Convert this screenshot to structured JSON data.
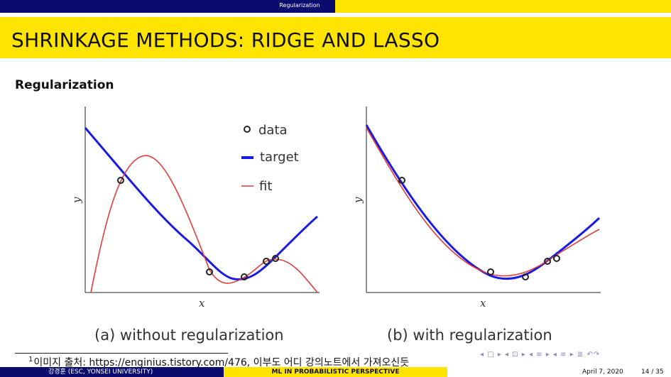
{
  "header": {
    "section": "Regularization"
  },
  "slide": {
    "title": "SHRINKAGE METHODS: RIDGE AND LASSO",
    "subheading": "Regularization"
  },
  "figure": {
    "legend": {
      "data": "data",
      "target": "target",
      "fit": "fit"
    },
    "panel_a": {
      "xlabel": "x",
      "ylabel": "y",
      "caption": "(a) without regularization"
    },
    "panel_b": {
      "xlabel": "x",
      "ylabel": "y",
      "caption": "(b) with regularization"
    },
    "colors": {
      "target": "#1a1ae6",
      "fit": "#e03c3c",
      "point": "#222222"
    }
  },
  "footnote": {
    "mark": "1",
    "text": "이미지 출처: https://enginius.tistory.com/476, 이부도 어디 강의노트에서 가져오신듯"
  },
  "nav_symbols": "◂ □ ▸ ◂ ⊡ ▸ ◂ ≡ ▸ ◂ ≡ ▸   ≣   ↶↷",
  "footer": {
    "author": "강경훈 (ESC, YONSEI UNIVERSITY)",
    "course": "ML IN PROBABILISTIC PERSPECTIVE",
    "date": "April 7, 2020",
    "page": "14 / 35"
  }
}
